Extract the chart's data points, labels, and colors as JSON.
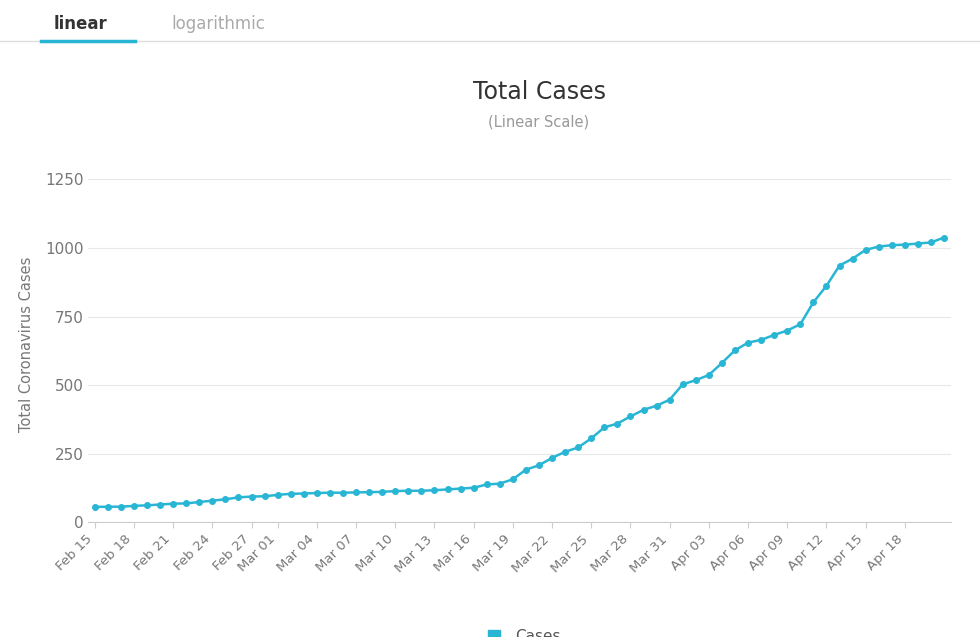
{
  "title": "Total Cases",
  "subtitle": "(Linear Scale)",
  "ylabel": "Total Coronavirus Cases",
  "background_color": "#ffffff",
  "line_color": "#29b6d4",
  "marker_color": "#29b6d4",
  "grid_color": "#e8e8e8",
  "ylim": [
    0,
    1300
  ],
  "yticks": [
    0,
    250,
    500,
    750,
    1000,
    1250
  ],
  "tab_linear": "linear",
  "tab_logarithmic": "logarithmic",
  "legend_label": "Cases",
  "values": [
    56,
    57,
    57,
    60,
    62,
    65,
    68,
    69,
    74,
    79,
    84,
    91,
    94,
    95,
    100,
    104,
    105,
    107,
    108,
    108,
    109,
    110,
    111,
    114,
    115,
    115,
    117,
    120,
    123,
    126,
    138,
    141,
    157,
    192,
    208,
    235,
    257,
    273,
    306,
    346,
    360,
    386,
    410,
    425,
    447,
    503,
    518,
    537,
    581,
    627,
    655,
    665,
    683,
    699,
    722,
    802,
    862,
    936,
    961,
    993,
    1005,
    1010,
    1012,
    1016,
    1020,
    1038
  ],
  "xtick_labels": [
    "Feb 15",
    "Feb 18",
    "Feb 21",
    "Feb 24",
    "Feb 27",
    "Mar 01",
    "Mar 04",
    "Mar 07",
    "Mar 10",
    "Mar 13",
    "Mar 16",
    "Mar 19",
    "Mar 22",
    "Mar 25",
    "Mar 28",
    "Mar 31",
    "Apr 03",
    "Apr 06",
    "Apr 09",
    "Apr 12",
    "Apr 15",
    "Apr 18"
  ],
  "xtick_indices": [
    0,
    3,
    6,
    9,
    12,
    14,
    17,
    20,
    23,
    26,
    29,
    32,
    35,
    38,
    41,
    44,
    47,
    50,
    53,
    56,
    59,
    62
  ]
}
